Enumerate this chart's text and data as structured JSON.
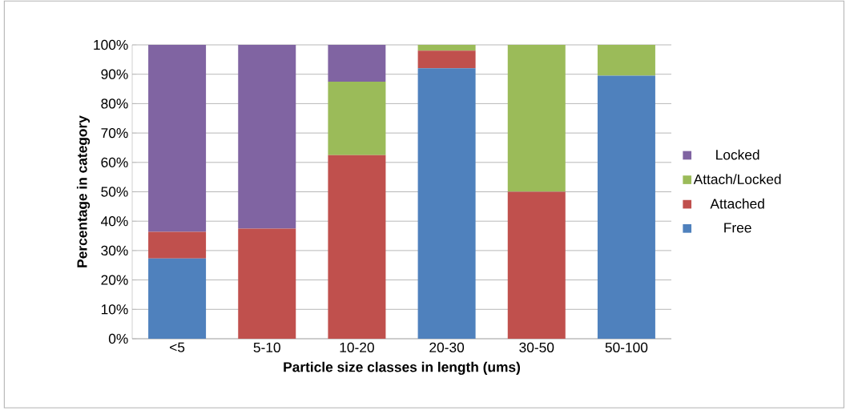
{
  "chart_data": {
    "type": "bar",
    "stacked": true,
    "xlabel": "Particle size classes in length (ums)",
    "ylabel": "Percentage in category",
    "categories": [
      "<5",
      "5-10",
      "10-20",
      "20-30",
      "30-50",
      "50-100"
    ],
    "series": [
      {
        "name": "Free",
        "color": "#4f81bd",
        "values": [
          27.3,
          0,
          0,
          92,
          0,
          89.5
        ]
      },
      {
        "name": "Attached",
        "color": "#c0504d",
        "values": [
          9.1,
          37.5,
          62.5,
          6,
          50,
          0
        ]
      },
      {
        "name": "Attach/Locked",
        "color": "#9bbb59",
        "values": [
          0,
          0,
          25,
          2,
          50,
          10.5
        ]
      },
      {
        "name": "Locked",
        "color": "#8064a2",
        "values": [
          63.6,
          62.5,
          12.5,
          0,
          0,
          0
        ]
      }
    ],
    "ylim": [
      0,
      100
    ],
    "yticks": [
      {
        "value": 0,
        "label": "0%"
      },
      {
        "value": 10,
        "label": "10%"
      },
      {
        "value": 20,
        "label": "20%"
      },
      {
        "value": 30,
        "label": "30%"
      },
      {
        "value": 40,
        "label": "40%"
      },
      {
        "value": 50,
        "label": "50%"
      },
      {
        "value": 60,
        "label": "60%"
      },
      {
        "value": 70,
        "label": "70%"
      },
      {
        "value": 80,
        "label": "80%"
      },
      {
        "value": 90,
        "label": "90%"
      },
      {
        "value": 100,
        "label": "100%"
      }
    ],
    "grid": "y",
    "legend": "right"
  }
}
